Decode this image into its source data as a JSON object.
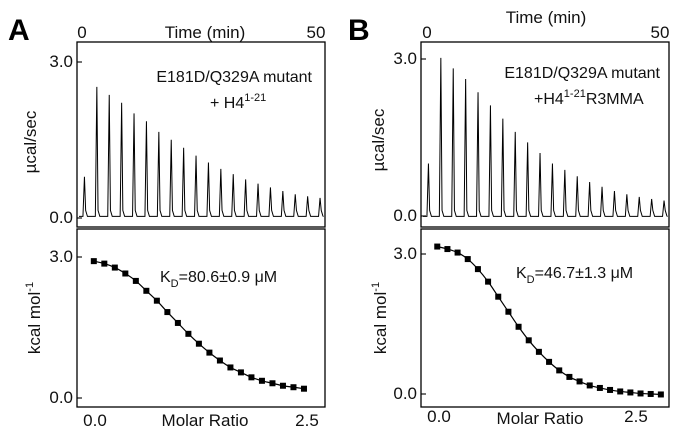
{
  "figure": {
    "panels": [
      {
        "letter": "A",
        "time_axis_label": "Time (min)",
        "time_ticks": [
          "0",
          "50"
        ],
        "raw_ylabel": "µcal/sec",
        "raw_yticks": [
          "3.0",
          "0.0"
        ],
        "annotation_line1": "E181D/Q329A mutant",
        "annotation_line2_prefix": "+ H4",
        "annotation_line2_sup": "1-21",
        "annotation_line2_suffix": "",
        "kd_symbol": "K",
        "kd_sub": "D",
        "kd_value": "=80.6±0.9 μM",
        "binding_ylabel_main": "kcal mol",
        "binding_ylabel_sup": "-1",
        "binding_yticks": [
          "3.0",
          "0.0"
        ],
        "molar_ratio_label": "Molar Ratio",
        "molar_ratio_ticks": [
          "0.0",
          "2.5"
        ]
      },
      {
        "letter": "B",
        "time_axis_label": "Time (min)",
        "time_ticks": [
          "0",
          "50"
        ],
        "raw_ylabel": "µcal/sec",
        "raw_yticks": [
          "3.0",
          "0.0"
        ],
        "annotation_line1": "E181D/Q329A mutant",
        "annotation_line2_prefix": "+H4",
        "annotation_line2_sup": "1-21",
        "annotation_line2_suffix": "R3MMA",
        "kd_symbol": "K",
        "kd_sub": "D",
        "kd_value": "=46.7±1.3 μM",
        "binding_ylabel_main": "kcal mol",
        "binding_ylabel_sup": "-1",
        "binding_yticks": [
          "3.0",
          "0.0"
        ],
        "molar_ratio_label": "Molar Ratio",
        "molar_ratio_ticks": [
          "0.0",
          "2.5"
        ]
      }
    ]
  },
  "chart_data": [
    {
      "type": "bar",
      "panel": "A",
      "subplot": "raw ITC injection heats",
      "xlabel": "Time (min)",
      "ylabel": "µcal/sec",
      "xlim": [
        0,
        50
      ],
      "ylim": [
        -0.2,
        3.3
      ],
      "series": [
        {
          "x": [
            1.5,
            4.0,
            6.5,
            9.0,
            11.5,
            14.0,
            16.5,
            19.0,
            21.5,
            24.0,
            26.5,
            29.0,
            31.5,
            34.0,
            36.5,
            39.0,
            41.5,
            44.0,
            46.5,
            49.0
          ],
          "values": [
            0.75,
            2.45,
            2.3,
            2.15,
            1.95,
            1.8,
            1.6,
            1.45,
            1.3,
            1.15,
            1.02,
            0.9,
            0.8,
            0.7,
            0.62,
            0.55,
            0.48,
            0.42,
            0.38,
            0.35
          ]
        }
      ]
    },
    {
      "type": "scatter",
      "panel": "A",
      "subplot": "integrated binding isotherm",
      "xlabel": "Molar Ratio",
      "ylabel": "kcal mol-1",
      "xlim": [
        -0.2,
        2.75
      ],
      "ylim": [
        -0.2,
        3.4
      ],
      "fit_line": true,
      "series": [
        {
          "x": [
            0.0,
            0.125,
            0.25,
            0.375,
            0.5,
            0.625,
            0.75,
            0.875,
            1.0,
            1.125,
            1.25,
            1.375,
            1.5,
            1.625,
            1.75,
            1.875,
            2.0,
            2.125,
            2.25,
            2.375,
            2.5
          ],
          "y": [
            2.75,
            2.7,
            2.62,
            2.5,
            2.35,
            2.15,
            1.95,
            1.72,
            1.5,
            1.28,
            1.08,
            0.9,
            0.74,
            0.6,
            0.5,
            0.4,
            0.33,
            0.28,
            0.23,
            0.2,
            0.17
          ]
        }
      ]
    },
    {
      "type": "bar",
      "panel": "B",
      "subplot": "raw ITC injection heats",
      "xlabel": "Time (min)",
      "ylabel": "µcal/sec",
      "xlim": [
        0,
        50
      ],
      "ylim": [
        -0.2,
        3.3
      ],
      "series": [
        {
          "x": [
            1.5,
            4.0,
            6.5,
            9.0,
            11.5,
            14.0,
            16.5,
            19.0,
            21.5,
            24.0,
            26.5,
            29.0,
            31.5,
            34.0,
            36.5,
            39.0,
            41.5,
            44.0,
            46.5,
            49.0
          ],
          "values": [
            1.0,
            3.0,
            2.8,
            2.6,
            2.35,
            2.1,
            1.85,
            1.6,
            1.4,
            1.2,
            1.0,
            0.88,
            0.76,
            0.65,
            0.56,
            0.48,
            0.42,
            0.37,
            0.33,
            0.3
          ]
        }
      ]
    },
    {
      "type": "scatter",
      "panel": "B",
      "subplot": "integrated binding isotherm",
      "xlabel": "Molar Ratio",
      "ylabel": "kcal mol-1",
      "xlim": [
        -0.2,
        2.85
      ],
      "ylim": [
        -0.15,
        3.4
      ],
      "fit_line": true,
      "series": [
        {
          "x": [
            0.0,
            0.125,
            0.25,
            0.375,
            0.5,
            0.625,
            0.75,
            0.875,
            1.0,
            1.125,
            1.25,
            1.375,
            1.5,
            1.625,
            1.75,
            1.875,
            2.0,
            2.125,
            2.25,
            2.375,
            2.5,
            2.625,
            2.75
          ],
          "y": [
            3.05,
            3.0,
            2.93,
            2.8,
            2.6,
            2.35,
            2.05,
            1.75,
            1.45,
            1.18,
            0.95,
            0.75,
            0.58,
            0.45,
            0.36,
            0.28,
            0.23,
            0.19,
            0.16,
            0.14,
            0.12,
            0.11,
            0.1
          ]
        }
      ]
    }
  ]
}
